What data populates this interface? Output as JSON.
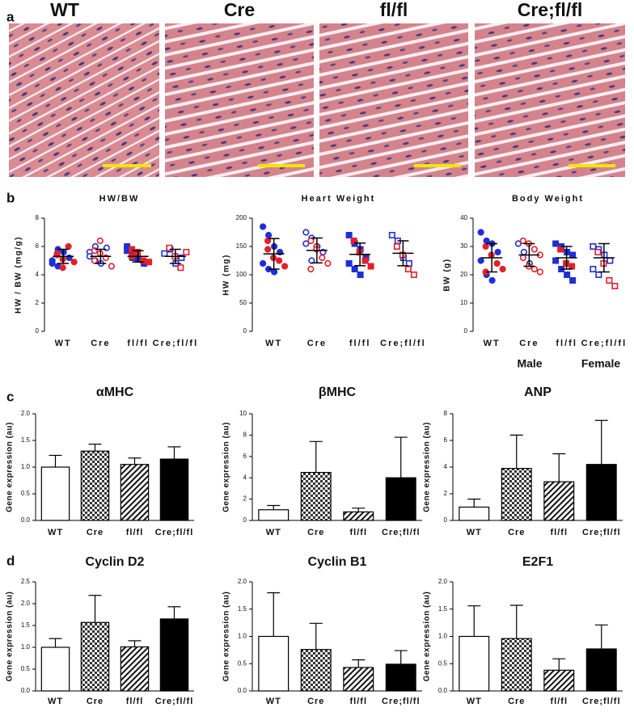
{
  "panel_labels": [
    "a",
    "b",
    "c",
    "d"
  ],
  "histology": {
    "titles": [
      "WT",
      "Cre",
      "fl/fl",
      "Cre;fl/fl"
    ]
  },
  "legend": [
    {
      "name": "Male",
      "color": "#1f2fd6"
    },
    {
      "name": "Female",
      "color": "#e2202a"
    }
  ],
  "chart_data": [
    {
      "type": "dot",
      "title": "HW/BW",
      "ylabel": "HW / BW (mg/g)",
      "categories": [
        "WT",
        "Cre",
        "fl/fl",
        "Cre;fl/fl"
      ],
      "markers": [
        "filled-circle",
        "open-circle",
        "filled-square",
        "open-square"
      ],
      "male": [
        [
          5.0,
          4.6,
          5.6,
          5.2,
          4.8,
          5.8
        ],
        [
          5.6,
          5.0,
          4.8,
          5.9,
          5.3,
          6.0
        ],
        [
          5.7,
          5.4,
          5.1,
          4.8,
          6.0,
          5.2
        ],
        [
          5.5,
          5.8,
          4.8,
          5.2
        ]
      ],
      "female": [
        [
          5.4,
          5.1,
          6.0,
          4.9,
          5.5,
          4.5
        ],
        [
          5.7,
          6.4,
          5.2,
          4.6,
          5.0,
          5.5
        ],
        [
          5.8,
          5.5,
          5.0,
          4.9,
          5.3,
          5.6
        ],
        [
          5.9,
          5.3,
          4.5,
          5.6
        ]
      ],
      "mean": [
        5.3,
        5.3,
        5.3,
        5.3
      ],
      "sd": [
        0.5,
        0.5,
        0.4,
        0.5
      ],
      "ylim": [
        0,
        8
      ],
      "yticks": [
        0,
        2,
        4,
        6,
        8
      ]
    },
    {
      "type": "dot",
      "title": "Heart Weight",
      "ylabel": "HW (mg)",
      "categories": [
        "WT",
        "Cre",
        "fl/fl",
        "Cre;fl/fl"
      ],
      "markers": [
        "filled-circle",
        "open-circle",
        "filled-square",
        "open-square"
      ],
      "male": [
        [
          185,
          170,
          150,
          140,
          120,
          110,
          105
        ],
        [
          175,
          165,
          150,
          140,
          155,
          125
        ],
        [
          170,
          155,
          145,
          130,
          120,
          110,
          100
        ],
        [
          170,
          160,
          130,
          120
        ]
      ],
      "female": [
        [
          160,
          130,
          125,
          115,
          145
        ],
        [
          160,
          150,
          130,
          120,
          110,
          145
        ],
        [
          160,
          140,
          125,
          115
        ],
        [
          150,
          135,
          110,
          100
        ]
      ],
      "mean": [
        137,
        143,
        136,
        138
      ],
      "sd": [
        27,
        22,
        20,
        22
      ],
      "ylim": [
        0,
        200
      ],
      "yticks": [
        0,
        50,
        100,
        150,
        200
      ]
    },
    {
      "type": "dot",
      "title": "Body Weight",
      "ylabel": "BW (g)",
      "categories": [
        "WT",
        "Cre",
        "fl/fl",
        "Cre;fl/fl"
      ],
      "markers": [
        "filled-circle",
        "open-circle",
        "filled-square",
        "open-square"
      ],
      "male": [
        [
          35,
          32,
          31,
          28,
          25,
          20,
          18
        ],
        [
          31,
          28,
          24
        ],
        [
          31,
          30,
          28,
          27,
          25,
          22,
          20,
          18
        ],
        [
          30,
          29,
          27,
          25,
          22,
          20
        ]
      ],
      "female": [
        [
          30,
          27,
          24,
          22,
          21
        ],
        [
          32,
          31,
          29,
          27,
          26,
          23,
          22,
          21
        ],
        [
          29,
          24,
          23
        ],
        [
          28,
          24,
          18,
          16
        ]
      ],
      "mean": [
        26,
        27,
        26,
        26
      ],
      "sd": [
        5,
        4,
        4,
        5
      ],
      "ylim": [
        0,
        40
      ],
      "yticks": [
        0,
        10,
        20,
        30,
        40
      ]
    },
    {
      "type": "bar",
      "title": "αMHC",
      "ylabel": "Gene expression (au)",
      "categories": [
        "WT",
        "Cre",
        "fl/fl",
        "Cre;fl/fl"
      ],
      "fills": [
        "white",
        "checker",
        "hatch",
        "black"
      ],
      "values": [
        1.0,
        1.3,
        1.05,
        1.15
      ],
      "errors": [
        0.22,
        0.13,
        0.12,
        0.23
      ],
      "ylim": [
        0,
        2
      ],
      "yticks": [
        {
          "value": 0,
          "label": "0.0"
        },
        0.5,
        {
          "value": 1,
          "label": "1.0"
        },
        1.5,
        {
          "value": 2,
          "label": "2.0"
        }
      ]
    },
    {
      "type": "bar",
      "title": "βMHC",
      "ylabel": "Gene expression (au)",
      "categories": [
        "WT",
        "Cre",
        "fl/fl",
        "Cre;fl/fl"
      ],
      "fills": [
        "white",
        "checker",
        "hatch",
        "black"
      ],
      "values": [
        1.0,
        4.5,
        0.8,
        4.0
      ],
      "errors": [
        0.4,
        2.9,
        0.35,
        3.8
      ],
      "ylim": [
        0,
        10
      ],
      "yticks": [
        0,
        2,
        4,
        6,
        8,
        10
      ]
    },
    {
      "type": "bar",
      "title": "ANP",
      "ylabel": "Gene expression (au)",
      "categories": [
        "WT",
        "Cre",
        "fl/fl",
        "Cre;fl/fl"
      ],
      "fills": [
        "white",
        "checker",
        "hatch",
        "black"
      ],
      "values": [
        1.0,
        3.9,
        2.9,
        4.2
      ],
      "errors": [
        0.6,
        2.5,
        2.1,
        3.3
      ],
      "ylim": [
        0,
        8
      ],
      "yticks": [
        0,
        2,
        4,
        6,
        8
      ]
    },
    {
      "type": "bar",
      "title": "Cyclin D2",
      "ylabel": "Gene expression (au)",
      "categories": [
        "WT",
        "Cre",
        "fl/fl",
        "Cre;fl/fl"
      ],
      "fills": [
        "white",
        "checker",
        "hatch",
        "black"
      ],
      "values": [
        1.0,
        1.57,
        1.01,
        1.65
      ],
      "errors": [
        0.2,
        0.62,
        0.14,
        0.28
      ],
      "ylim": [
        0,
        2.5
      ],
      "yticks": [
        {
          "value": 0,
          "label": "0.0"
        },
        0.5,
        {
          "value": 1,
          "label": "1.0"
        },
        1.5,
        {
          "value": 2,
          "label": "2.0"
        },
        2.5
      ]
    },
    {
      "type": "bar",
      "title": "Cyclin B1",
      "ylabel": "Gene expression (au)",
      "categories": [
        "WT",
        "Cre",
        "fl/fl",
        "Cre;fl/fl"
      ],
      "fills": [
        "white",
        "checker",
        "hatch",
        "black"
      ],
      "values": [
        1.0,
        0.76,
        0.43,
        0.49
      ],
      "errors": [
        0.8,
        0.48,
        0.14,
        0.25
      ],
      "ylim": [
        0,
        2
      ],
      "yticks": [
        {
          "value": 0,
          "label": "0.0"
        },
        0.5,
        {
          "value": 1,
          "label": "1.0"
        },
        1.5,
        {
          "value": 2,
          "label": "2.0"
        }
      ]
    },
    {
      "type": "bar",
      "title": "E2F1",
      "ylabel": "Gene expression (au)",
      "categories": [
        "WT",
        "Cre",
        "fl/fl",
        "Cre;fl/fl"
      ],
      "fills": [
        "white",
        "checker",
        "hatch",
        "black"
      ],
      "values": [
        1.0,
        0.96,
        0.38,
        0.77
      ],
      "errors": [
        0.56,
        0.61,
        0.21,
        0.44
      ],
      "ylim": [
        0,
        2
      ],
      "yticks": [
        {
          "value": 0,
          "label": "0.0"
        },
        0.5,
        {
          "value": 1,
          "label": "1.0"
        },
        1.5,
        {
          "value": 2,
          "label": "2.0"
        }
      ]
    }
  ]
}
